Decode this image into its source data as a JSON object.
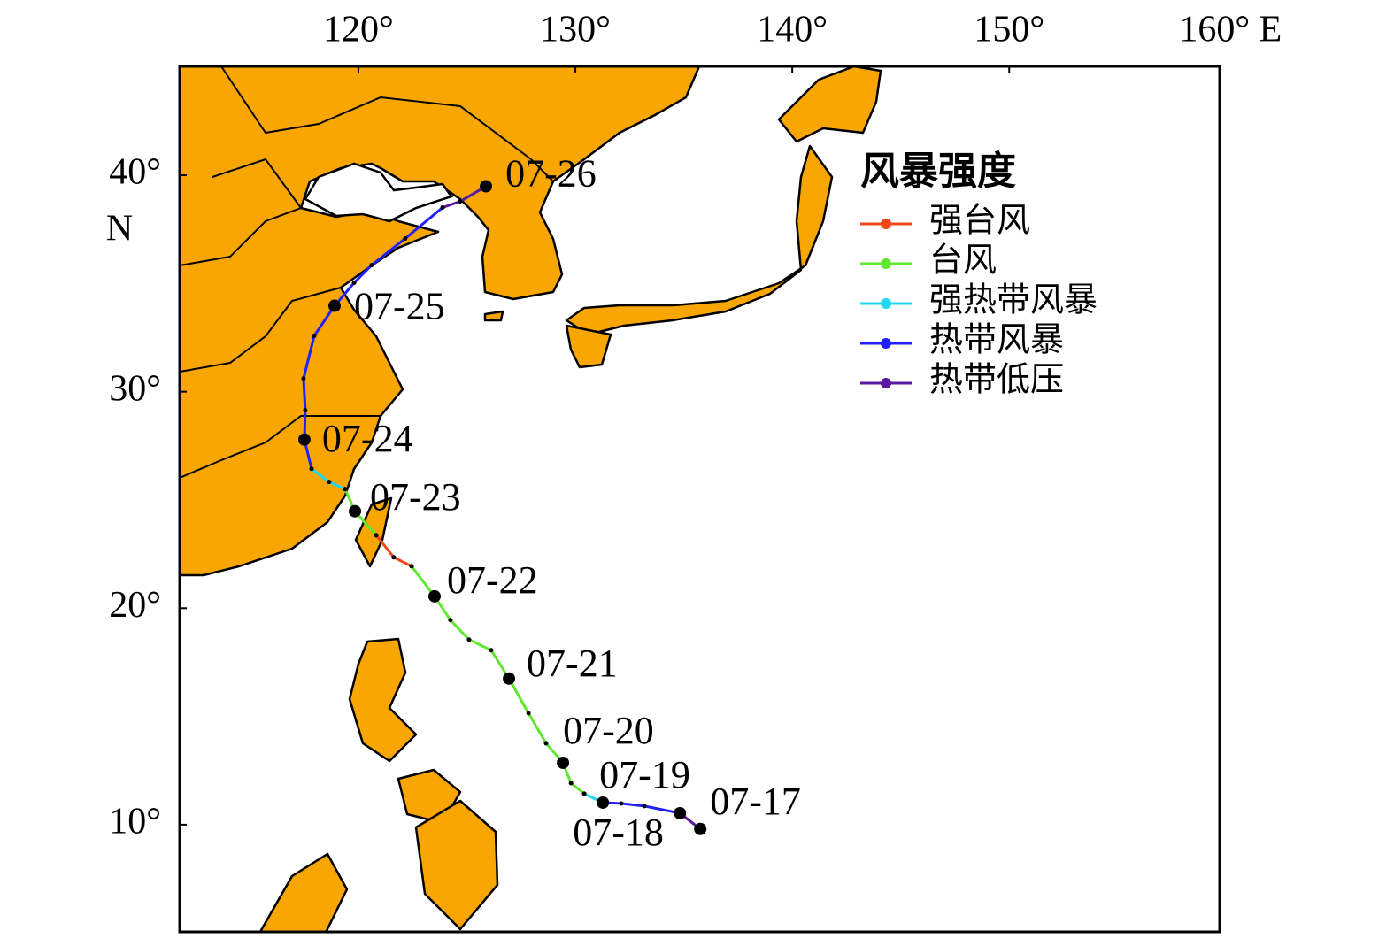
{
  "chart_data": {
    "type": "track",
    "xlim": [
      111.76,
      159.7
    ],
    "ylim": [
      5.05,
      45.03
    ],
    "xticks": [
      {
        "value": 120,
        "label": "120°"
      },
      {
        "value": 130,
        "label": "130°"
      },
      {
        "value": 140,
        "label": "140°"
      },
      {
        "value": 150,
        "label": "150°"
      },
      {
        "value": 160,
        "label": "160° E"
      }
    ],
    "yticks": [
      {
        "value": 10,
        "label": "10°"
      },
      {
        "value": 20,
        "label": "20°"
      },
      {
        "value": 30,
        "label": "30°"
      },
      {
        "value": 40,
        "label": "40°"
      }
    ],
    "y_unit": "N",
    "legend_title": "风暴强度",
    "series": [
      {
        "name": "强台风",
        "color": "#f04818",
        "x": [
          122.45,
          121.63,
          120.82
        ],
        "y": [
          21.94,
          22.35,
          23.37
        ]
      },
      {
        "name": "台风",
        "color": "#60e830",
        "x": [
          130.41,
          129.8,
          129.43,
          128.65,
          127.84,
          126.94,
          126.12,
          125.1,
          124.24,
          123.51,
          122.45,
          null,
          120.82,
          119.84,
          119.39
        ],
        "y": [
          11.43,
          11.92,
          12.86,
          13.76,
          15.15,
          16.75,
          18.06,
          18.55,
          19.45,
          20.55,
          21.94,
          null,
          23.37,
          24.48,
          25.5
        ]
      },
      {
        "name": "强热带风暴",
        "color": "#20d8f0",
        "x": [
          131.27,
          130.41,
          null,
          119.39,
          118.65,
          117.84
        ],
        "y": [
          11.02,
          11.43,
          null,
          25.5,
          25.83,
          26.44
        ]
      },
      {
        "name": "热带风暴",
        "color": "#2020ff",
        "x": [
          134.82,
          133.18,
          132.12,
          131.27,
          null,
          117.84,
          117.51,
          117.55,
          117.47,
          117.96,
          118.9,
          119.8,
          120.61,
          122.16,
          123.88
        ],
        "y": [
          10.53,
          10.86,
          10.98,
          11.02,
          null,
          26.44,
          27.79,
          29.14,
          30.61,
          32.58,
          33.97,
          35.03,
          35.85,
          37.08,
          38.51
        ]
      },
      {
        "name": "热带低压",
        "color": "#5a1aa0",
        "x": [
          135.76,
          134.82,
          null,
          123.88,
          124.69,
          125.88
        ],
        "y": [
          9.8,
          10.53,
          null,
          38.51,
          38.79,
          39.49
        ]
      }
    ],
    "day_marks": {
      "x": [
        135.76,
        134.82,
        131.27,
        129.43,
        126.94,
        123.51,
        119.84,
        117.51,
        118.9,
        125.88
      ],
      "y": [
        9.8,
        10.53,
        11.02,
        12.86,
        16.75,
        20.55,
        24.48,
        27.79,
        33.97,
        39.49
      ],
      "labels": [
        "07-17",
        "07-18",
        "07-19",
        "07-20",
        "07-21",
        "07-22",
        "07-23",
        "07-24",
        "07-25",
        "07-26"
      ]
    }
  }
}
